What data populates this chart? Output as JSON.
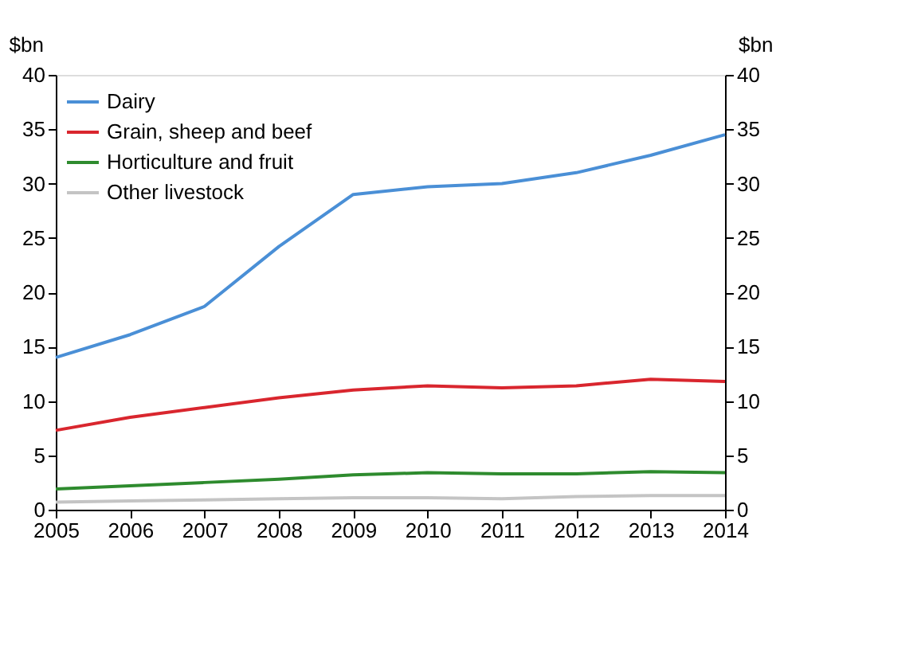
{
  "chart_data": {
    "type": "line",
    "x": [
      2005,
      2006,
      2007,
      2008,
      2009,
      2010,
      2011,
      2012,
      2013,
      2014
    ],
    "xlim": [
      2005,
      2014
    ],
    "xticks": [
      2005,
      2006,
      2007,
      2008,
      2009,
      2010,
      2011,
      2012,
      2013,
      2014
    ],
    "ylabel": "$bn",
    "y2label": "$bn",
    "ylim": [
      0,
      40
    ],
    "yticks": [
      0,
      5,
      10,
      15,
      20,
      25,
      30,
      35,
      40
    ],
    "y2lim": [
      0,
      40
    ],
    "y2ticks": [
      0,
      5,
      10,
      15,
      20,
      25,
      30,
      35,
      40
    ],
    "grid": false,
    "legend": "top left",
    "line_style": "solid",
    "marker": "none",
    "series": [
      {
        "name": "Dairy",
        "color": "#4a8fd6",
        "values": [
          14,
          16.1,
          18.7,
          24.2,
          29,
          29.7,
          30,
          31,
          32.6,
          34.5
        ]
      },
      {
        "name": "Grain, sheep and beef",
        "color": "#d9262e",
        "values": [
          7.3,
          8.5,
          9.4,
          10.3,
          11,
          11.4,
          11.2,
          11.4,
          12,
          11.8
        ]
      },
      {
        "name": "Horticulture and fruit",
        "color": "#2e8b2e",
        "values": [
          1.9,
          2.2,
          2.5,
          2.8,
          3.2,
          3.4,
          3.3,
          3.3,
          3.5,
          3.4
        ]
      },
      {
        "name": "Other livestock",
        "color": "#c4c4c4",
        "values": [
          0.7,
          0.8,
          0.9,
          1.0,
          1.1,
          1.1,
          1.0,
          1.2,
          1.3,
          1.3
        ]
      }
    ]
  }
}
